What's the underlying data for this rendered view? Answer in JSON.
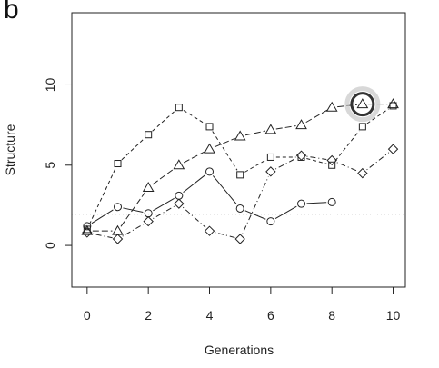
{
  "panel_label": "b",
  "chart_data": {
    "type": "line",
    "xlabel": "Generations",
    "ylabel": "Structure",
    "xlim": [
      -0.5,
      10.4
    ],
    "ylim": [
      -2.6,
      14.5
    ],
    "x_ticks": [
      0,
      2,
      4,
      6,
      8,
      10
    ],
    "y_ticks": [
      0,
      5,
      10
    ],
    "reference_line": {
      "y": 1.95,
      "style": "dotted"
    },
    "series": [
      {
        "marker": "circle",
        "line_style": "solid",
        "x": [
          0,
          1,
          2,
          3,
          4,
          5,
          6,
          7,
          8
        ],
        "y": [
          1.2,
          2.4,
          2.0,
          3.1,
          4.6,
          2.3,
          1.5,
          2.6,
          2.7
        ]
      },
      {
        "marker": "square",
        "line_style": "dashed",
        "x": [
          0,
          1,
          2,
          3,
          4,
          5,
          6,
          7,
          8,
          9,
          10
        ],
        "y": [
          1.0,
          5.1,
          6.9,
          8.6,
          7.4,
          4.4,
          5.5,
          5.5,
          5.0,
          7.4,
          8.7
        ]
      },
      {
        "marker": "triangle",
        "line_style": "longdash",
        "x": [
          0,
          1,
          2,
          3,
          4,
          5,
          6,
          7,
          8,
          9,
          10
        ],
        "y": [
          0.9,
          0.9,
          3.6,
          5.0,
          6.0,
          6.8,
          7.2,
          7.5,
          8.6,
          8.8,
          8.8
        ]
      },
      {
        "marker": "diamond",
        "line_style": "dotdash",
        "x": [
          0,
          1,
          2,
          3,
          4,
          5,
          6,
          7,
          8,
          9,
          10
        ],
        "y": [
          0.8,
          0.4,
          1.5,
          2.6,
          0.9,
          0.4,
          4.6,
          5.6,
          5.3,
          4.5,
          6.0
        ]
      }
    ],
    "highlight": {
      "series_index": 2,
      "point_index": 9
    }
  }
}
